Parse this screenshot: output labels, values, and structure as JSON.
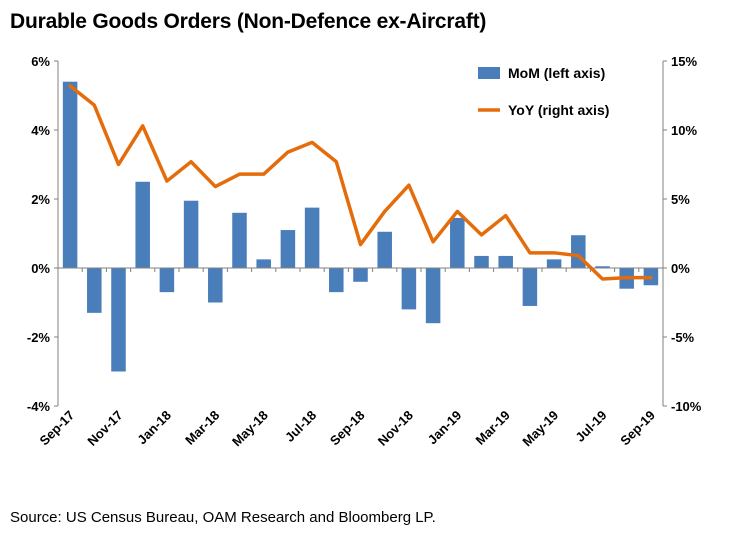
{
  "title": "Durable Goods Orders (Non-Defence ex-Aircraft)",
  "source": "Source: US Census Bureau, OAM Research and Bloomberg LP.",
  "chart_data": {
    "type": "bar",
    "categories": [
      "Sep-17",
      "Oct-17",
      "Nov-17",
      "Dec-17",
      "Jan-18",
      "Feb-18",
      "Mar-18",
      "Apr-18",
      "May-18",
      "Jun-18",
      "Jul-18",
      "Aug-18",
      "Sep-18",
      "Oct-18",
      "Nov-18",
      "Dec-18",
      "Jan-19",
      "Feb-19",
      "Mar-19",
      "Apr-19",
      "May-19",
      "Jun-19",
      "Jul-19",
      "Aug-19",
      "Sep-19"
    ],
    "x_tick_labels": [
      "Sep-17",
      "Nov-17",
      "Jan-18",
      "Mar-18",
      "May-18",
      "Jul-18",
      "Sep-18",
      "Nov-18",
      "Jan-19",
      "Mar-19",
      "May-19",
      "Jul-19",
      "Sep-19"
    ],
    "series": [
      {
        "name": "MoM (left axis)",
        "type": "bar",
        "axis": "left",
        "color": "#4a7ebb",
        "values": [
          5.4,
          -1.3,
          -3.0,
          2.5,
          -0.7,
          1.95,
          -1.0,
          1.6,
          0.25,
          1.1,
          1.75,
          -0.7,
          -0.4,
          1.05,
          -1.2,
          -1.6,
          1.45,
          0.35,
          0.35,
          -1.1,
          0.25,
          0.95,
          0.05,
          -0.6,
          -0.5
        ]
      },
      {
        "name": "YoY (right axis)",
        "type": "line",
        "axis": "right",
        "color": "#e46c0a",
        "values": [
          13.2,
          11.8,
          7.5,
          10.3,
          6.3,
          7.7,
          5.9,
          6.8,
          6.8,
          8.4,
          9.1,
          7.7,
          1.7,
          4.1,
          6.0,
          1.9,
          4.1,
          2.4,
          3.8,
          1.1,
          1.1,
          0.9,
          -0.8,
          -0.7,
          -0.7
        ]
      }
    ],
    "y_left": {
      "min": -4,
      "max": 6,
      "step": 2,
      "tick_labels": [
        "-4%",
        "-2%",
        "0%",
        "2%",
        "4%",
        "6%"
      ]
    },
    "y_right": {
      "min": -10,
      "max": 15,
      "step": 5,
      "tick_labels": [
        "-10%",
        "-5%",
        "0%",
        "5%",
        "10%",
        "15%"
      ]
    },
    "legend_position": "top-right",
    "grid": false
  }
}
